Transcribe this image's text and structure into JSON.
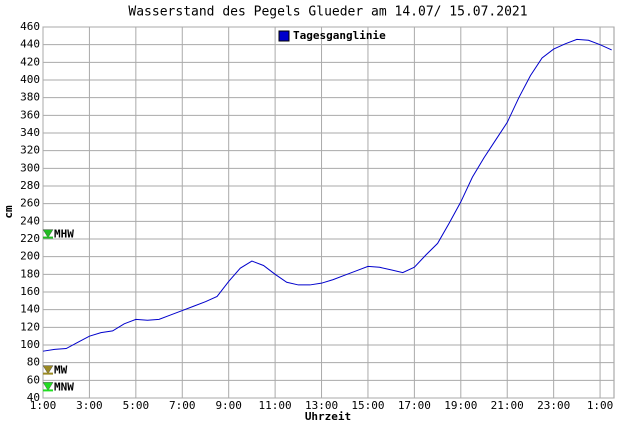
{
  "chart_data": {
    "type": "line",
    "title": "Wasserstand des Pegels Glueder am 14.07/ 15.07.2021",
    "x_label": "Uhrzeit",
    "y_label": "cm",
    "x": [
      0,
      0.5,
      1,
      1.5,
      2,
      2.5,
      3,
      3.5,
      4,
      4.5,
      5,
      5.5,
      6,
      6.5,
      7,
      7.5,
      8,
      8.5,
      9,
      9.5,
      10,
      10.5,
      11,
      11.5,
      12,
      12.5,
      13,
      13.5,
      14,
      14.5,
      15,
      15.5,
      16,
      16.5,
      17,
      17.5,
      18,
      18.5,
      19,
      19.5,
      20,
      20.5,
      21,
      21.5,
      22,
      22.5,
      23,
      23.5,
      24,
      24.5
    ],
    "series": [
      {
        "name": "Tagesganglinie",
        "color": "#0000cc",
        "values": [
          93,
          95,
          96,
          103,
          110,
          114,
          116,
          124,
          129,
          128,
          129,
          134,
          139,
          144,
          149,
          155,
          172,
          187,
          195,
          190,
          180,
          171,
          168,
          168,
          170,
          174,
          179,
          184,
          189,
          188,
          185,
          182,
          188,
          202,
          215,
          238,
          262,
          290,
          312,
          332,
          352,
          380,
          405,
          425,
          435,
          441,
          446,
          445,
          440,
          434
        ]
      }
    ],
    "legend": "top-center",
    "markers": [
      {
        "name": "MHW",
        "value": 225,
        "color": "#22bb22"
      },
      {
        "name": "MW",
        "value": 71,
        "color": "#998822"
      },
      {
        "name": "MNW",
        "value": 52,
        "color": "#22dd22"
      }
    ],
    "xlim": [
      0,
      24.6
    ],
    "xticks": [
      {
        "value": 0,
        "label": "1:00"
      },
      {
        "value": 2,
        "label": "3:00"
      },
      {
        "value": 4,
        "label": "5:00"
      },
      {
        "value": 6,
        "label": "7:00"
      },
      {
        "value": 8,
        "label": "9:00"
      },
      {
        "value": 10,
        "label": "11:00"
      },
      {
        "value": 12,
        "label": "13:00"
      },
      {
        "value": 14,
        "label": "15:00"
      },
      {
        "value": 16,
        "label": "17:00"
      },
      {
        "value": 18,
        "label": "19:00"
      },
      {
        "value": 20,
        "label": "21:00"
      },
      {
        "value": 22,
        "label": "23:00"
      },
      {
        "value": 24,
        "label": "1:00"
      }
    ],
    "ylim": [
      40,
      460
    ],
    "yticks": [
      40,
      60,
      80,
      100,
      120,
      140,
      160,
      180,
      200,
      220,
      240,
      260,
      280,
      300,
      320,
      340,
      360,
      380,
      400,
      420,
      440,
      460
    ],
    "grid": true
  }
}
